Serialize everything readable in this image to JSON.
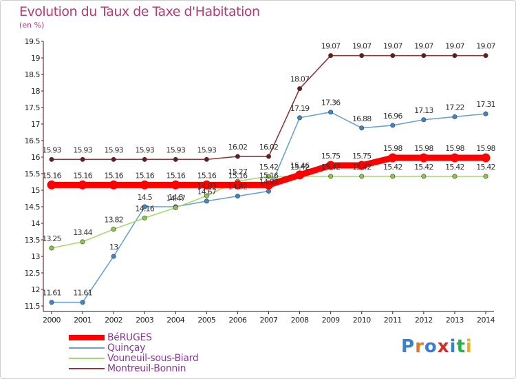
{
  "header": {
    "title": "Evolution du Taux de Taxe d'Habitation",
    "unit": "(en %)"
  },
  "logo": {
    "text": "Proxiti",
    "colors": [
      "#3a7fd0",
      "#e07a2a",
      "#3a7fd0",
      "#d0302a",
      "#3a7fd0",
      "#2ab04a",
      "#e8b020"
    ]
  },
  "chart_data": {
    "type": "line",
    "title": "Evolution du Taux de Taxe d'Habitation",
    "ylabel": "(en %)",
    "xlabel": "",
    "x": [
      "2000",
      "2001",
      "2002",
      "2003",
      "2004",
      "2005",
      "2006",
      "2007",
      "2008",
      "2009",
      "2010",
      "2011",
      "2012",
      "2013",
      "2014"
    ],
    "ylim": [
      11.5,
      19.5
    ],
    "yticks": [
      "11.5",
      "12",
      "12.5",
      "13",
      "13.5",
      "14",
      "14.5",
      "15",
      "15.5",
      "16",
      "16.5",
      "17",
      "17.5",
      "18",
      "18.5",
      "19",
      "19.5"
    ],
    "grid": false,
    "legend_position": "bottom-left",
    "series": [
      {
        "name": "BéRUGES",
        "color": "#ff0000",
        "point_color": "#ff0000",
        "values": [
          15.16,
          15.16,
          15.16,
          15.16,
          15.16,
          15.16,
          15.16,
          15.16,
          15.46,
          15.75,
          15.75,
          15.98,
          15.98,
          15.98,
          15.98
        ],
        "labels": [
          "15.16",
          "15.16",
          "15.16",
          "15.16",
          "15.16",
          "15.16",
          "15.16",
          "15.16",
          "15.46",
          "15.75",
          "15.75",
          "15.98",
          "15.98",
          "15.98",
          "15.98"
        ]
      },
      {
        "name": "Quinçay",
        "color": "#6aa0d0",
        "point_color": "#3a86c8",
        "values": [
          11.61,
          11.61,
          13,
          14.5,
          14.5,
          14.67,
          14.82,
          14.97,
          17.19,
          17.36,
          16.88,
          16.96,
          17.13,
          17.22,
          17.31
        ],
        "labels": [
          "11.61",
          "11.61",
          "13",
          "14.5",
          "14.5",
          "14.67",
          "14.82",
          "14.97",
          "17.19",
          "17.36",
          "16.88",
          "16.96",
          "17.13",
          "17.22",
          "17.31"
        ]
      },
      {
        "name": "Vouneuil-sous-Biard",
        "color": "#a6d870",
        "point_color": "#88c840",
        "values": [
          13.25,
          13.44,
          13.82,
          14.16,
          14.47,
          14.83,
          15.27,
          15.42,
          15.42,
          15.42,
          15.42,
          15.42,
          15.42,
          15.42,
          15.42
        ],
        "labels": [
          "13.25",
          "13.44",
          "13.82",
          "14.16",
          "14.47",
          "14.83",
          "15.27",
          "15.42",
          "15.42",
          "15.42",
          "15.42",
          "15.42",
          "15.42",
          "15.42",
          "15.42"
        ]
      },
      {
        "name": "Montreuil-Bonnin",
        "color": "#8a3a3a",
        "point_color": "#6a1a1a",
        "values": [
          15.93,
          15.93,
          15.93,
          15.93,
          15.93,
          15.93,
          16.02,
          16.02,
          18.07,
          19.07,
          19.07,
          19.07,
          19.07,
          19.07,
          19.07
        ],
        "labels": [
          "15.93",
          "15.93",
          "15.93",
          "15.93",
          "15.93",
          "15.93",
          "16.02",
          "16.02",
          "18.07",
          "19.07",
          "19.07",
          "19.07",
          "19.07",
          "19.07",
          "19.07"
        ]
      }
    ]
  }
}
